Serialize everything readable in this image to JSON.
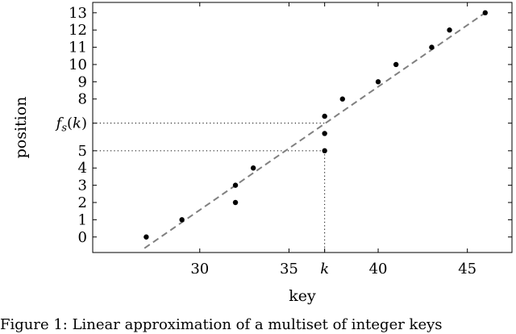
{
  "chart_data": {
    "type": "scatter",
    "xlabel": "key",
    "ylabel": "position",
    "xlim": [
      24,
      47.5
    ],
    "ylim": [
      -0.9,
      13.6
    ],
    "x_ticks": [
      {
        "value": 30,
        "label": "30"
      },
      {
        "value": 35,
        "label": "35"
      },
      {
        "value": 37,
        "label": "k",
        "italic": true
      },
      {
        "value": 40,
        "label": "40"
      },
      {
        "value": 45,
        "label": "45"
      }
    ],
    "y_ticks": [
      {
        "value": 0,
        "label": "0"
      },
      {
        "value": 1,
        "label": "1"
      },
      {
        "value": 2,
        "label": "2"
      },
      {
        "value": 3,
        "label": "3"
      },
      {
        "value": 4,
        "label": "4"
      },
      {
        "value": 5,
        "label": "5"
      },
      {
        "value": 6.6,
        "label": "f_s(k)",
        "math": true
      },
      {
        "value": 8,
        "label": "8"
      },
      {
        "value": 9,
        "label": "9"
      },
      {
        "value": 10,
        "label": "10"
      },
      {
        "value": 11,
        "label": "11"
      },
      {
        "value": 12,
        "label": "12"
      },
      {
        "value": 13,
        "label": "13"
      }
    ],
    "series": [
      {
        "points": [
          {
            "x": 27,
            "y": 0
          },
          {
            "x": 29,
            "y": 1
          },
          {
            "x": 32,
            "y": 2
          },
          {
            "x": 32,
            "y": 3
          },
          {
            "x": 33,
            "y": 4
          },
          {
            "x": 37,
            "y": 5
          },
          {
            "x": 37,
            "y": 6
          },
          {
            "x": 37,
            "y": 7
          },
          {
            "x": 38,
            "y": 8
          },
          {
            "x": 40,
            "y": 9
          },
          {
            "x": 41,
            "y": 10
          },
          {
            "x": 43,
            "y": 11
          },
          {
            "x": 44,
            "y": 12
          },
          {
            "x": 46,
            "y": 13
          }
        ]
      }
    ],
    "fit_line": {
      "x": [
        26.9,
        46
      ],
      "y": [
        -0.65,
        13
      ]
    },
    "guides": {
      "key_value": 37,
      "predicted_position": 6.6,
      "actual_position": 5
    },
    "colors": {
      "points": "#000000",
      "fit_line": "#808080",
      "guides": "#000000",
      "axes": "#000000"
    },
    "grid": false,
    "legend": "none"
  },
  "caption": "Figure 1:  Linear approximation of a multiset of integer keys"
}
